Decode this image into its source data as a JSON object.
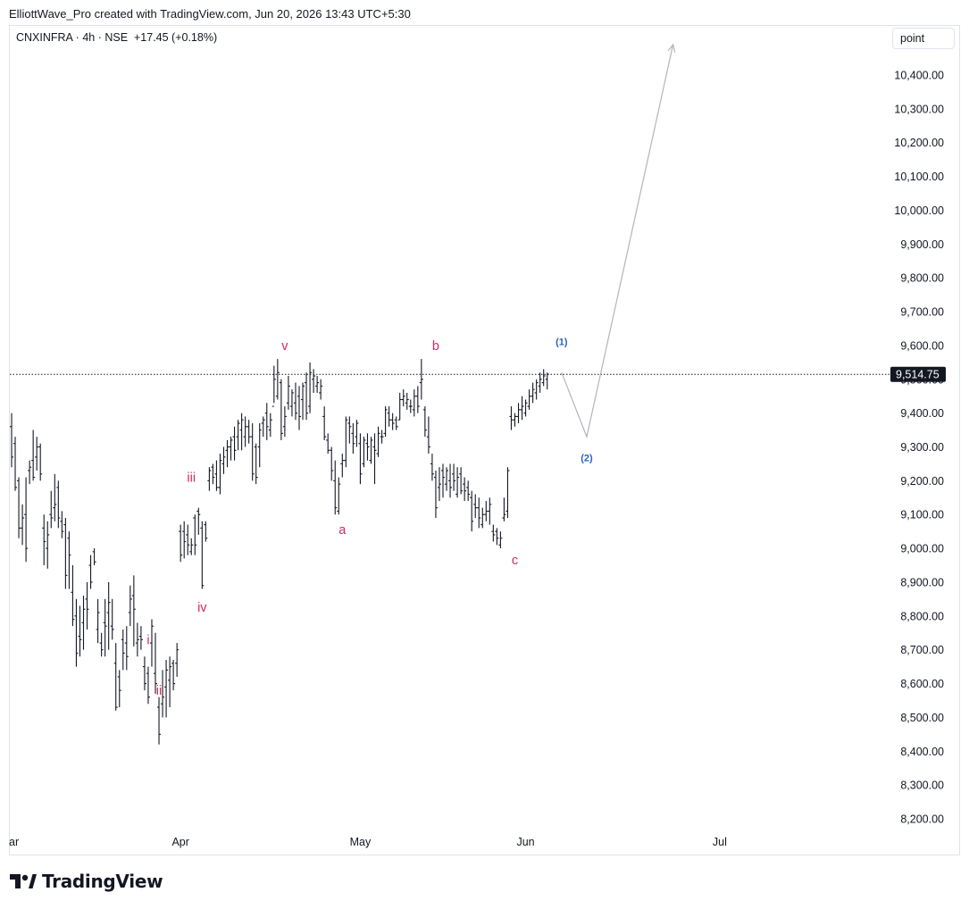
{
  "header": {
    "attribution": "ElliottWave_Pro created with TradingView.com, Jun 20, 2026 13:43 UTC+5:30"
  },
  "symbol": {
    "name": "CNXINFRA",
    "interval": "4h",
    "exchange": "NSE",
    "change": "+17.45 (+0.18%)"
  },
  "unit_button": "point",
  "price_badge": "9,514.75",
  "footer": {
    "logo_text": "TradingView",
    "logo_icon": "tradingview-logo-icon"
  },
  "colors": {
    "bars": "#131722",
    "wave_red": "#d4295e",
    "wave_blue": "#2962c4",
    "projection": "#b2b5be",
    "badge_bg": "#131722"
  },
  "chart_data": {
    "type": "ohlc",
    "y_ticks": [
      "8,200.00",
      "8,300.00",
      "8,400.00",
      "8,500.00",
      "8,600.00",
      "8,700.00",
      "8,800.00",
      "8,900.00",
      "9,000.00",
      "9,100.00",
      "9,200.00",
      "9,300.00",
      "9,400.00",
      "9,500.00",
      "9,600.00",
      "9,700.00",
      "9,800.00",
      "9,900.00",
      "10,000.00",
      "10,100.00",
      "10,200.00",
      "10,300.00",
      "10,400.00"
    ],
    "y_values": [
      8200,
      8300,
      8400,
      8500,
      8600,
      8700,
      8800,
      8900,
      9000,
      9100,
      9200,
      9300,
      9400,
      9500,
      9600,
      9700,
      9800,
      9900,
      10000,
      10100,
      10200,
      10300,
      10400
    ],
    "ylim": [
      8120,
      10510
    ],
    "x_ticks": [
      "ar",
      "Apr",
      "May",
      "Jun",
      "Jul"
    ],
    "x_tick_bars": [
      0,
      47,
      97,
      143,
      197
    ],
    "current_price": 9514.75,
    "bars": [
      [
        9360,
        9400,
        9240,
        9270
      ],
      [
        9310,
        9330,
        9170,
        9180
      ],
      [
        9200,
        9210,
        9030,
        9060
      ],
      [
        9060,
        9130,
        9010,
        9090
      ],
      [
        9100,
        9210,
        8960,
        9000
      ],
      [
        9230,
        9260,
        9190,
        9240
      ],
      [
        9260,
        9350,
        9200,
        9210
      ],
      [
        9270,
        9330,
        9230,
        9300
      ],
      [
        9300,
        9310,
        9200,
        9220
      ],
      [
        9060,
        9100,
        8950,
        9020
      ],
      [
        9000,
        9080,
        8940,
        9040
      ],
      [
        9100,
        9170,
        9060,
        9090
      ],
      [
        9120,
        9220,
        9080,
        9130
      ],
      [
        9180,
        9200,
        9060,
        9090
      ],
      [
        9080,
        9110,
        9030,
        9050
      ],
      [
        9070,
        9090,
        8880,
        8920
      ],
      [
        9030,
        9050,
        8880,
        8980
      ],
      [
        8870,
        8950,
        8770,
        8790
      ],
      [
        8800,
        8850,
        8650,
        8690
      ],
      [
        8740,
        8830,
        8680,
        8730
      ],
      [
        8780,
        8860,
        8700,
        8820
      ],
      [
        8850,
        8900,
        8760,
        8820
      ],
      [
        8950,
        8980,
        8880,
        8900
      ],
      [
        8990,
        9000,
        8950,
        8960
      ],
      [
        8760,
        8850,
        8720,
        8810
      ],
      [
        8720,
        8750,
        8680,
        8700
      ],
      [
        8780,
        8850,
        8680,
        8770
      ],
      [
        8810,
        8900,
        8700,
        8840
      ],
      [
        8770,
        8850,
        8730,
        8760
      ],
      [
        8660,
        8720,
        8520,
        8530
      ],
      [
        8620,
        8640,
        8530,
        8580
      ],
      [
        8730,
        8760,
        8640,
        8690
      ],
      [
        8720,
        8770,
        8640,
        8680
      ],
      [
        8810,
        8890,
        8770,
        8850
      ],
      [
        8860,
        8920,
        8710,
        8820
      ],
      [
        8720,
        8780,
        8680,
        8730
      ],
      [
        8740,
        8770,
        8700,
        8730
      ],
      [
        8650,
        8680,
        8580,
        8600
      ],
      [
        8630,
        8650,
        8540,
        8560
      ],
      [
        8720,
        8790,
        8650,
        8770
      ],
      [
        8630,
        8750,
        8570,
        8600
      ],
      [
        8530,
        8560,
        8420,
        8450
      ],
      [
        8540,
        8640,
        8500,
        8560
      ],
      [
        8590,
        8670,
        8500,
        8640
      ],
      [
        8610,
        8680,
        8530,
        8650
      ],
      [
        8660,
        8670,
        8580,
        8600
      ],
      [
        8660,
        8720,
        8620,
        8700
      ],
      [
        9050,
        9070,
        8960,
        8980
      ],
      [
        9050,
        9080,
        8970,
        9020
      ],
      [
        9040,
        9070,
        8980,
        9010
      ],
      [
        8990,
        9030,
        8980,
        9010
      ],
      [
        9090,
        9100,
        8980,
        9010
      ],
      [
        9110,
        9120,
        9040,
        9100
      ],
      [
        9060,
        9080,
        8880,
        8890
      ],
      [
        9070,
        9080,
        9020,
        9030
      ],
      [
        9200,
        9240,
        9170,
        9230
      ],
      [
        9240,
        9250,
        9190,
        9210
      ],
      [
        9220,
        9260,
        9170,
        9180
      ],
      [
        9180,
        9280,
        9160,
        9260
      ],
      [
        9250,
        9300,
        9220,
        9270
      ],
      [
        9290,
        9320,
        9240,
        9300
      ],
      [
        9300,
        9330,
        9260,
        9320
      ],
      [
        9330,
        9360,
        9260,
        9290
      ],
      [
        9330,
        9380,
        9290,
        9370
      ],
      [
        9350,
        9400,
        9290,
        9380
      ],
      [
        9330,
        9390,
        9300,
        9360
      ],
      [
        9360,
        9380,
        9310,
        9330
      ],
      [
        9330,
        9370,
        9200,
        9220
      ],
      [
        9300,
        9310,
        9190,
        9210
      ],
      [
        9300,
        9370,
        9240,
        9350
      ],
      [
        9370,
        9390,
        9330,
        9380
      ],
      [
        9400,
        9430,
        9320,
        9360
      ],
      [
        9350,
        9400,
        9330,
        9380
      ],
      [
        9420,
        9540,
        9430,
        9500
      ],
      [
        9450,
        9560,
        9440,
        9520
      ],
      [
        9490,
        9500,
        9320,
        9340
      ],
      [
        9360,
        9420,
        9330,
        9390
      ],
      [
        9430,
        9510,
        9410,
        9480
      ],
      [
        9420,
        9470,
        9390,
        9460
      ],
      [
        9430,
        9490,
        9380,
        9400
      ],
      [
        9450,
        9480,
        9350,
        9390
      ],
      [
        9440,
        9490,
        9380,
        9480
      ],
      [
        9490,
        9520,
        9380,
        9400
      ],
      [
        9420,
        9550,
        9400,
        9520
      ],
      [
        9500,
        9530,
        9460,
        9510
      ],
      [
        9480,
        9510,
        9460,
        9490
      ],
      [
        9460,
        9500,
        9440,
        9480
      ],
      [
        9390,
        9420,
        9320,
        9330
      ],
      [
        9320,
        9340,
        9280,
        9290
      ],
      [
        9290,
        9300,
        9200,
        9230
      ],
      [
        9200,
        9260,
        9100,
        9120
      ],
      [
        9110,
        9210,
        9100,
        9190
      ],
      [
        9250,
        9280,
        9210,
        9260
      ],
      [
        9260,
        9390,
        9240,
        9380
      ],
      [
        9370,
        9390,
        9310,
        9360
      ],
      [
        9340,
        9370,
        9280,
        9310
      ],
      [
        9330,
        9380,
        9300,
        9370
      ],
      [
        9310,
        9340,
        9190,
        9220
      ],
      [
        9250,
        9330,
        9240,
        9320
      ],
      [
        9310,
        9340,
        9260,
        9300
      ],
      [
        9260,
        9330,
        9250,
        9320
      ],
      [
        9300,
        9340,
        9190,
        9290
      ],
      [
        9280,
        9360,
        9270,
        9340
      ],
      [
        9330,
        9350,
        9310,
        9330
      ],
      [
        9340,
        9420,
        9330,
        9410
      ],
      [
        9400,
        9420,
        9360,
        9380
      ],
      [
        9380,
        9400,
        9350,
        9370
      ],
      [
        9380,
        9390,
        9350,
        9360
      ],
      [
        9380,
        9460,
        9380,
        9440
      ],
      [
        9440,
        9470,
        9420,
        9450
      ],
      [
        9430,
        9460,
        9410,
        9440
      ],
      [
        9420,
        9440,
        9400,
        9420
      ],
      [
        9410,
        9470,
        9390,
        9450
      ],
      [
        9450,
        9480,
        9400,
        9420
      ],
      [
        9490,
        9560,
        9440,
        9500
      ],
      [
        9410,
        9420,
        9330,
        9350
      ],
      [
        9330,
        9390,
        9280,
        9300
      ],
      [
        9250,
        9280,
        9200,
        9220
      ],
      [
        9210,
        9230,
        9090,
        9120
      ],
      [
        9180,
        9240,
        9140,
        9190
      ],
      [
        9230,
        9250,
        9150,
        9210
      ],
      [
        9190,
        9240,
        9170,
        9230
      ],
      [
        9200,
        9250,
        9150,
        9180
      ],
      [
        9220,
        9250,
        9170,
        9200
      ],
      [
        9160,
        9240,
        9150,
        9210
      ],
      [
        9220,
        9240,
        9160,
        9170
      ],
      [
        9190,
        9210,
        9140,
        9170
      ],
      [
        9180,
        9200,
        9140,
        9160
      ],
      [
        9150,
        9170,
        9050,
        9080
      ],
      [
        9130,
        9160,
        9090,
        9120
      ],
      [
        9120,
        9150,
        9060,
        9090
      ],
      [
        9070,
        9120,
        9060,
        9100
      ],
      [
        9100,
        9140,
        9080,
        9110
      ],
      [
        9110,
        9150,
        9070,
        9130
      ],
      [
        9050,
        9070,
        9020,
        9040
      ],
      [
        9050,
        9060,
        9010,
        9030
      ],
      [
        9010,
        9050,
        9000,
        9030
      ],
      [
        9090,
        9150,
        9080,
        9100
      ],
      [
        9110,
        9240,
        9090,
        9230
      ],
      [
        9390,
        9420,
        9350,
        9380
      ],
      [
        9380,
        9400,
        9360,
        9390
      ],
      [
        9390,
        9430,
        9370,
        9410
      ],
      [
        9410,
        9450,
        9380,
        9420
      ],
      [
        9400,
        9440,
        9390,
        9430
      ],
      [
        9420,
        9470,
        9410,
        9450
      ],
      [
        9450,
        9490,
        9430,
        9470
      ],
      [
        9460,
        9500,
        9440,
        9490
      ],
      [
        9480,
        9520,
        9460,
        9500
      ],
      [
        9490,
        9530,
        9480,
        9510
      ],
      [
        9500,
        9520,
        9470,
        9515
      ]
    ],
    "waves": [
      {
        "label": "i",
        "bar": 38,
        "price": 8690,
        "pos": "above",
        "color": "red"
      },
      {
        "label": "ii",
        "bar": 41,
        "price": 8580,
        "pos": "on",
        "color": "red"
      },
      {
        "label": "iii",
        "bar": 50,
        "price": 9170,
        "pos": "above",
        "color": "red"
      },
      {
        "label": "iv",
        "bar": 53,
        "price": 8860,
        "pos": "below",
        "color": "red"
      },
      {
        "label": "v",
        "bar": 76,
        "price": 9560,
        "pos": "above",
        "color": "red"
      },
      {
        "label": "a",
        "bar": 92,
        "price": 9090,
        "pos": "below",
        "color": "red"
      },
      {
        "label": "b",
        "bar": 118,
        "price": 9560,
        "pos": "above",
        "color": "red"
      },
      {
        "label": "c",
        "bar": 140,
        "price": 9000,
        "pos": "below",
        "color": "red"
      },
      {
        "label": "(1)",
        "bar": 153,
        "price": 9575,
        "pos": "above",
        "color": "blue"
      },
      {
        "label": "(2)",
        "bar": 160,
        "price": 9305,
        "pos": "below",
        "color": "blue"
      }
    ],
    "projection": {
      "bar": [
        153,
        160,
        184
      ],
      "price": [
        9520,
        9330,
        10490
      ]
    }
  }
}
